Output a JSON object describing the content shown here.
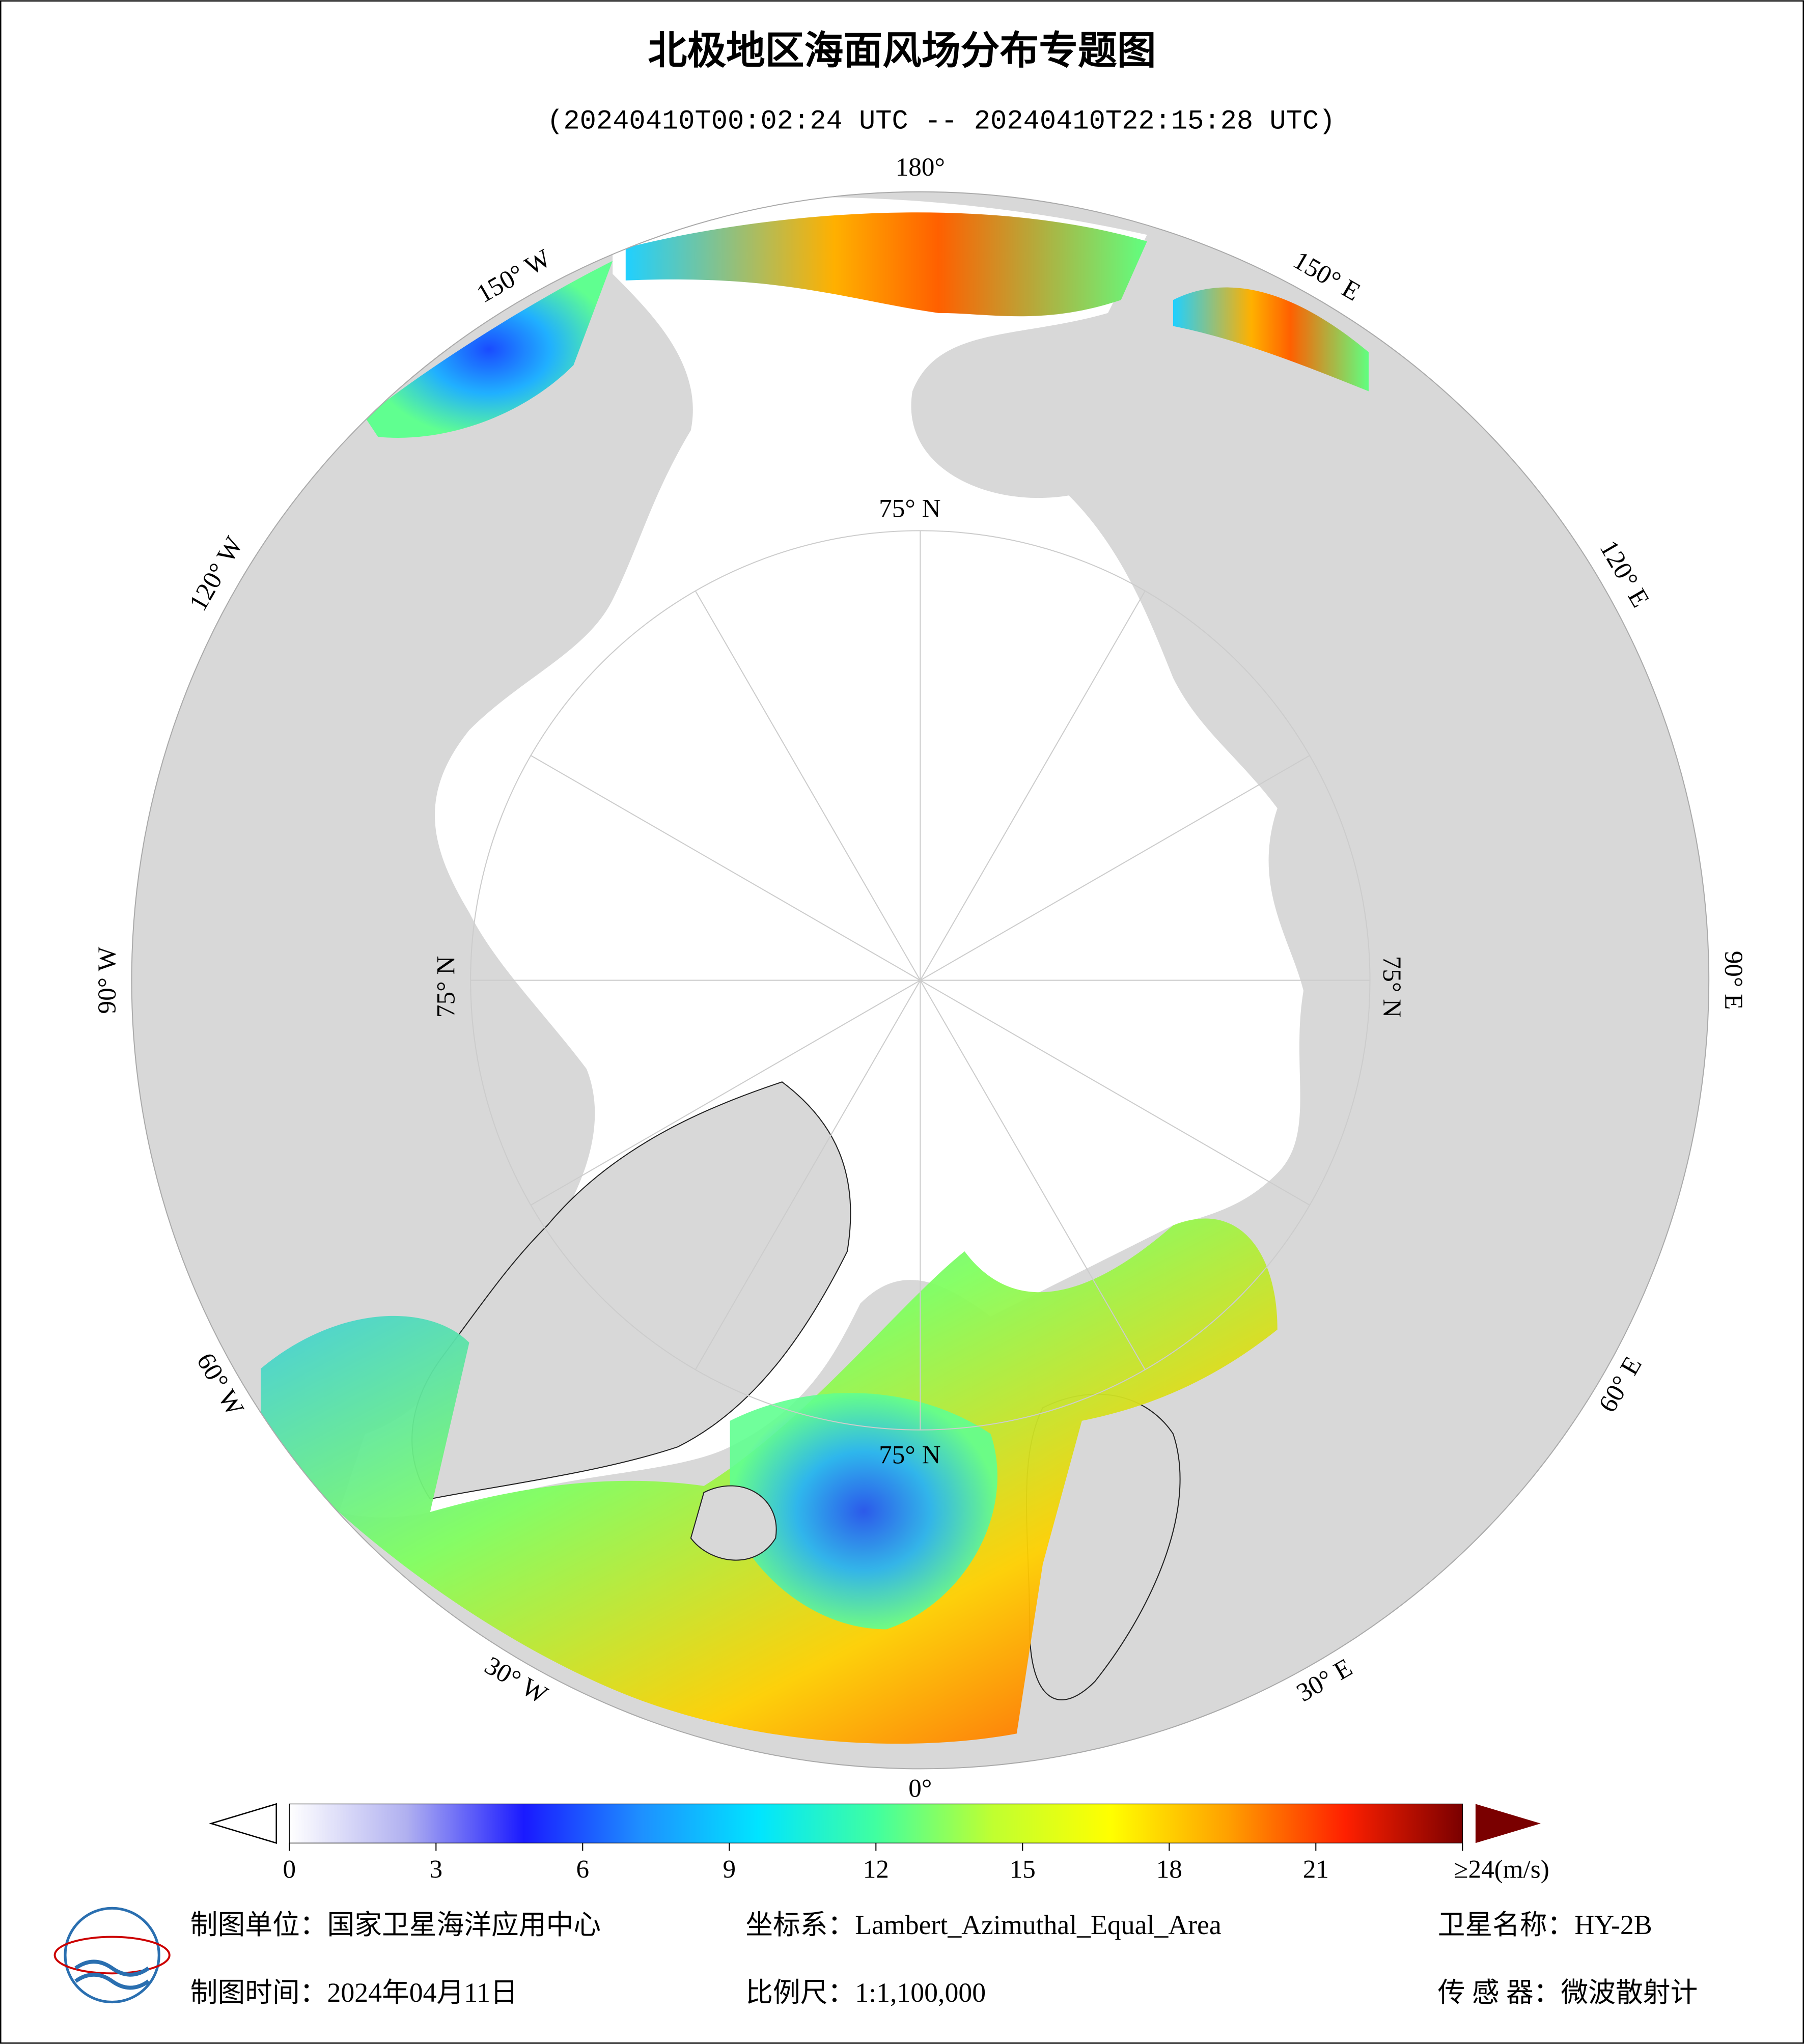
{
  "header": {
    "title": "北极地区海面风场分布专题图",
    "subtitle": "(20240410T00:02:24 UTC -- 20240410T22:15:28 UTC)"
  },
  "map": {
    "longitude_labels": [
      "180°",
      "150° E",
      "120° E",
      "90° E",
      "60° E",
      "30° E",
      "0°",
      "30° W",
      "60° W",
      "90° W",
      "120° W",
      "150° W"
    ],
    "latitude_labels": [
      "75° N",
      "75° N",
      "75° N",
      "75° N"
    ]
  },
  "colorbar": {
    "lim": [
      0,
      24
    ],
    "ticks": [
      0,
      3,
      6,
      9,
      12,
      15,
      18,
      21,
      {
        "value": 24,
        "label": "≥24(m/s)"
      }
    ],
    "colors": [
      "#ffffff",
      "#b0b0f0",
      "#1a1aff",
      "#1e90ff",
      "#00e5ff",
      "#40ffa0",
      "#c0ff30",
      "#ffff00",
      "#ffa000",
      "#ff2000",
      "#7a0000"
    ]
  },
  "footer": {
    "unit": "制图单位：国家卫星海洋应用中心",
    "coordinate_system": "坐标系：Lambert_Azimuthal_Equal_Area",
    "satellite": "卫星名称：HY-2B",
    "date": "制图时间：2024年04月11日",
    "scale": "比例尺：1:1,100,000",
    "sensor": "传 感 器：微波散射计"
  }
}
